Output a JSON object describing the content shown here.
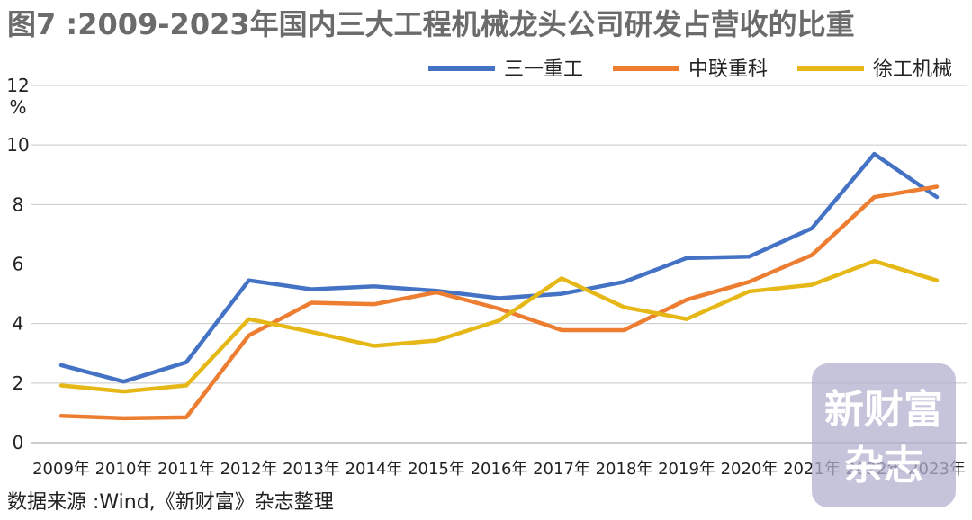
{
  "page": {
    "title": "图7 :2009-2023年国内三大工程机械龙头公司研发占营收的比重",
    "source": "数据来源 :Wind,《新财富》杂志整理",
    "watermark": [
      "新财富",
      "杂志"
    ]
  },
  "chart_data": {
    "type": "line",
    "title": "图7 :2009-2023年国内三大工程机械龙头公司研发占营收的比重",
    "ylabel": "%",
    "ylim": [
      0,
      12
    ],
    "yticks": [
      "0",
      "2",
      "4",
      "6",
      "8",
      "10",
      "12"
    ],
    "categories": [
      "2009年",
      "2010年",
      "2011年",
      "2012年",
      "2013年",
      "2014年",
      "2015年",
      "2016年",
      "2017年",
      "2018年",
      "2019年",
      "2020年",
      "2021年",
      "2022年",
      "2023年"
    ],
    "grid": true,
    "legend_position": "top-right",
    "series": [
      {
        "name": "三一重工",
        "color": "#4472c4",
        "values": [
          2.6,
          2.05,
          2.7,
          5.45,
          5.15,
          5.25,
          5.1,
          4.85,
          5.0,
          5.4,
          6.2,
          6.25,
          7.2,
          9.7,
          8.25
        ]
      },
      {
        "name": "中联重科",
        "color": "#ed7d31",
        "values": [
          0.9,
          0.82,
          0.85,
          3.6,
          4.7,
          4.65,
          5.05,
          4.5,
          3.78,
          3.78,
          4.8,
          5.4,
          6.3,
          8.25,
          8.6
        ]
      },
      {
        "name": "徐工机械",
        "color": "#e6b817",
        "values": [
          1.92,
          1.72,
          1.92,
          4.15,
          3.72,
          3.25,
          3.43,
          4.1,
          5.52,
          4.55,
          4.15,
          5.08,
          5.3,
          6.1,
          5.45
        ]
      }
    ]
  }
}
